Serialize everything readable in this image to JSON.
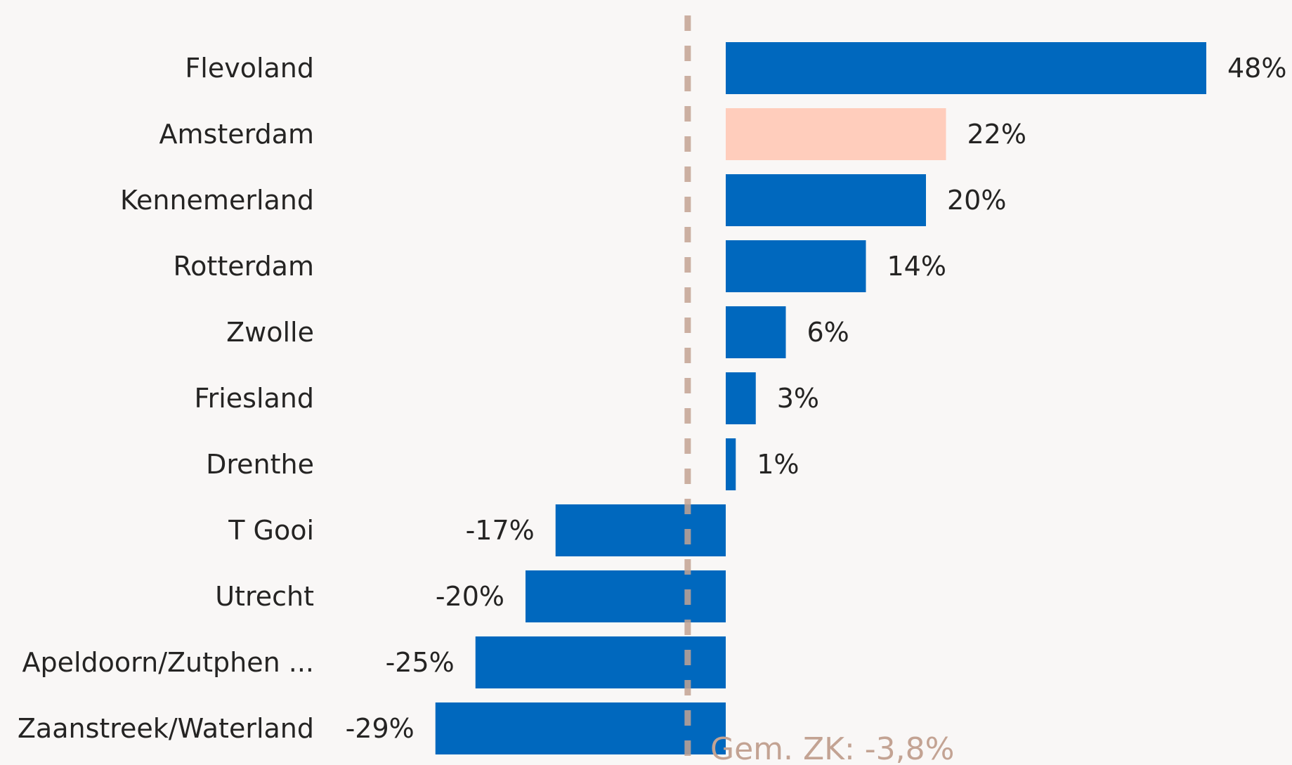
{
  "chart_data": {
    "type": "bar",
    "orientation": "horizontal",
    "categories": [
      "Flevoland",
      "Amsterdam",
      "Kennemerland",
      "Rotterdam",
      "Zwolle",
      "Friesland",
      "Drenthe",
      "T Gooi",
      "Utrecht",
      "Apeldoorn/Zutphen ...",
      "Zaanstreek/Waterland"
    ],
    "values": [
      48,
      22,
      20,
      14,
      6,
      3,
      1,
      -17,
      -20,
      -25,
      -29
    ],
    "value_labels": [
      "48%",
      "22%",
      "20%",
      "14%",
      "6%",
      "3%",
      "1%",
      "-17%",
      "-20%",
      "-25%",
      "-29%"
    ],
    "highlight_category": "Amsterdam",
    "xlim": [
      -29,
      48
    ],
    "grid": false,
    "reference_line": {
      "value": -3.8,
      "label": "Gem. ZK: -3,8%",
      "style": "dashed"
    },
    "colors": {
      "bar": "#0068BE",
      "highlight": "#FFCDBC",
      "reference": "#C3A393",
      "background": "#F9F7F6",
      "text": "#252423"
    }
  }
}
